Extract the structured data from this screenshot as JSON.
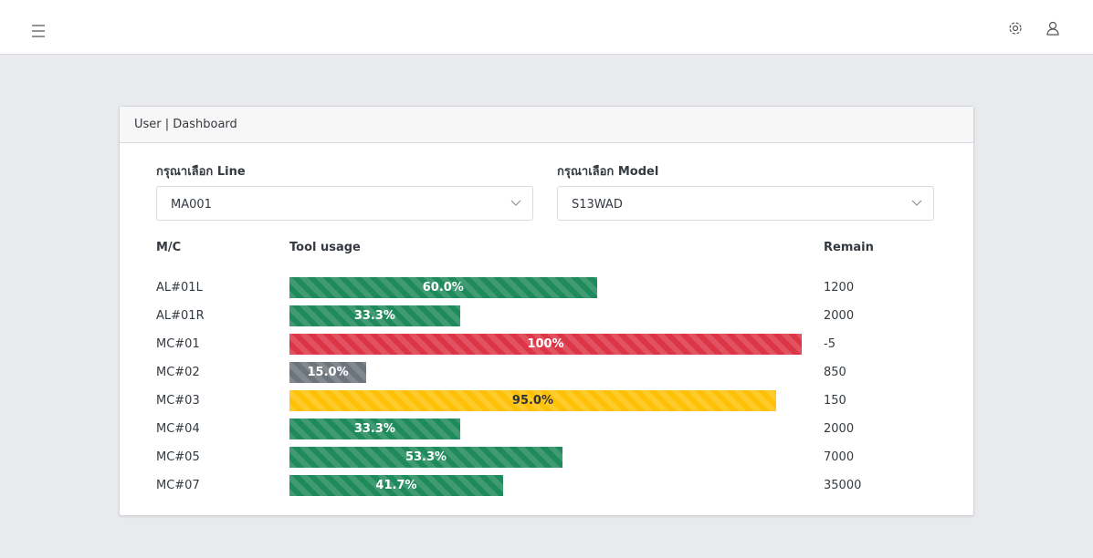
{
  "header": {
    "breadcrumb": "User | Dashboard"
  },
  "filters": [
    {
      "label": "กรุณาเลือก Line",
      "value": "MA001"
    },
    {
      "label": "กรุณาเลือก Model",
      "value": "S13WAD"
    }
  ],
  "table": {
    "columns": [
      "M/C",
      "Tool usage",
      "Remain"
    ],
    "rows": [
      {
        "mc": "AL#01L",
        "usage": 60,
        "usage_label": "60.0%",
        "remain": 1200,
        "color": "#1f8a5b"
      },
      {
        "mc": "AL#01R",
        "usage": 33.3,
        "usage_label": "33.3%",
        "remain": 2000,
        "color": "#1f8a5b"
      },
      {
        "mc": "MC#01",
        "usage": 100,
        "usage_label": "100%",
        "remain": -5,
        "color": "#dc3545"
      },
      {
        "mc": "MC#02",
        "usage": 15,
        "usage_label": "15.0%",
        "remain": 850,
        "color": "#6c757d"
      },
      {
        "mc": "MC#03",
        "usage": 95,
        "usage_label": "95.0%",
        "remain": 150,
        "color": "#ffc107"
      },
      {
        "mc": "MC#04",
        "usage": 33.3,
        "usage_label": "33.3%",
        "remain": 2000,
        "color": "#1f8a5b"
      },
      {
        "mc": "MC#05",
        "usage": 53.3,
        "usage_label": "53.3%",
        "remain": 7000,
        "color": "#1f8a5b"
      },
      {
        "mc": "MC#07",
        "usage": 41.7,
        "usage_label": "41.7%",
        "remain": 35000,
        "color": "#1f8a5b"
      }
    ]
  }
}
